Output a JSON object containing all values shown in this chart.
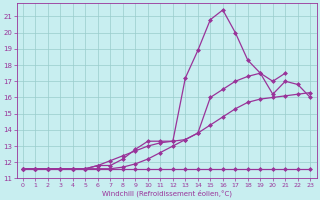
{
  "title": "",
  "xlabel": "Windchill (Refroidissement éolien,°C)",
  "bg_color": "#c8eef0",
  "line_color": "#993399",
  "grid_color": "#99cccc",
  "xlim": [
    -0.5,
    23.5
  ],
  "ylim": [
    11,
    21.8
  ],
  "xticks": [
    0,
    1,
    2,
    3,
    4,
    5,
    6,
    7,
    8,
    9,
    10,
    11,
    12,
    13,
    14,
    15,
    16,
    17,
    18,
    19,
    20,
    21,
    22,
    23
  ],
  "yticks": [
    11,
    12,
    13,
    14,
    15,
    16,
    17,
    18,
    19,
    20,
    21
  ],
  "line1_x": [
    0,
    1,
    2,
    3,
    4,
    5,
    6,
    7,
    8,
    9,
    10,
    11,
    12,
    13,
    14,
    15,
    16,
    17,
    18,
    19,
    20,
    21,
    22,
    23
  ],
  "line1_y": [
    11.6,
    11.6,
    11.6,
    11.6,
    11.6,
    11.6,
    11.6,
    11.6,
    11.6,
    11.6,
    11.6,
    11.6,
    11.6,
    11.6,
    11.6,
    11.6,
    11.6,
    11.6,
    11.6,
    11.6,
    11.6,
    11.6,
    11.6,
    11.6
  ],
  "line2_x": [
    0,
    1,
    2,
    3,
    4,
    5,
    6,
    7,
    8,
    9,
    10,
    11,
    12,
    13,
    14,
    15,
    16,
    17,
    18,
    19,
    20,
    21,
    22,
    23
  ],
  "line2_y": [
    11.6,
    11.6,
    11.6,
    11.6,
    11.6,
    11.6,
    11.6,
    11.6,
    11.7,
    11.9,
    12.2,
    12.6,
    13.0,
    13.4,
    13.8,
    14.3,
    14.8,
    15.3,
    15.7,
    15.9,
    16.0,
    16.1,
    16.2,
    16.3
  ],
  "line3_x": [
    0,
    1,
    2,
    3,
    4,
    5,
    6,
    7,
    8,
    9,
    10,
    11,
    12,
    13,
    14,
    15,
    16,
    17,
    18,
    19,
    20,
    21,
    22,
    23
  ],
  "line3_y": [
    11.6,
    11.6,
    11.6,
    11.6,
    11.6,
    11.6,
    11.8,
    12.1,
    12.4,
    12.7,
    13.0,
    13.2,
    13.3,
    13.4,
    13.8,
    16.0,
    16.5,
    17.0,
    17.3,
    17.5,
    16.2,
    17.0,
    16.8,
    16.0
  ],
  "line4_x": [
    0,
    1,
    2,
    3,
    4,
    5,
    6,
    7,
    8,
    9,
    10,
    11,
    12,
    13,
    14,
    15,
    16,
    17,
    18,
    19,
    20,
    21
  ],
  "line4_y": [
    11.6,
    11.6,
    11.6,
    11.6,
    11.6,
    11.6,
    11.8,
    11.8,
    12.2,
    12.8,
    13.3,
    13.3,
    13.3,
    17.2,
    18.9,
    20.8,
    21.4,
    20.0,
    18.3,
    17.5,
    17.0,
    17.5
  ],
  "markersize": 2.5,
  "linewidth": 0.9
}
